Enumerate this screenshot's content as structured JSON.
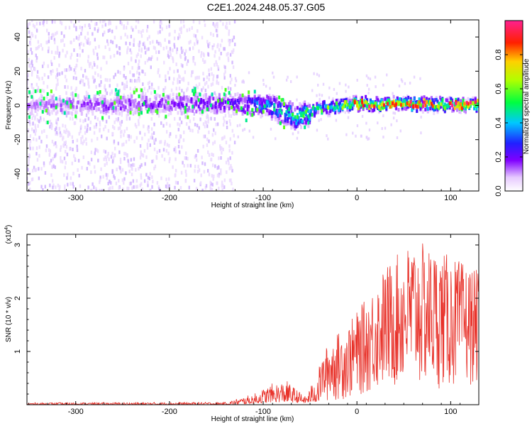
{
  "title": "C2E1.2024.248.05.37.G05",
  "chart_data": [
    {
      "type": "heatmap",
      "title": "C2E1.2024.248.05.37.G05",
      "xlabel": "Height of straight line (km)",
      "ylabel": "Frequency (Hz)",
      "xlim": [
        -352,
        130
      ],
      "ylim": [
        -50,
        50
      ],
      "x_ticks": [
        "-300",
        "-200",
        "-100",
        "0",
        "100"
      ],
      "y_ticks": [
        "-40",
        "-20",
        "0",
        "20",
        "40"
      ],
      "x_tick_values": [
        -300,
        -200,
        -100,
        0,
        100
      ],
      "y_tick_values": [
        -40,
        -20,
        0,
        20,
        40
      ],
      "colorbar": {
        "label": "Normalized spectral amplitude",
        "range": [
          0,
          1
        ],
        "ticks": [
          "0.0",
          "0.2",
          "0.4",
          "0.6",
          "0.8"
        ],
        "tick_values": [
          0.0,
          0.2,
          0.4,
          0.6,
          0.8
        ],
        "colormap": "rainbow (white-violet-blue-cyan-green-yellow-red)"
      },
      "ridge": [
        {
          "x": -352,
          "freq": 0
        },
        {
          "x": -130,
          "freq": 1
        },
        {
          "x": -100,
          "freq": 0
        },
        {
          "x": -80,
          "freq": -3
        },
        {
          "x": -62,
          "freq": -7
        },
        {
          "x": -45,
          "freq": -3
        },
        {
          "x": -20,
          "freq": 0
        },
        {
          "x": 0,
          "freq": 1
        },
        {
          "x": 130,
          "freq": 0
        }
      ],
      "ridge_amplitude": [
        {
          "x": -352,
          "amp": 0.12
        },
        {
          "x": -130,
          "amp": 0.2
        },
        {
          "x": -100,
          "amp": 0.35
        },
        {
          "x": -60,
          "amp": 0.5
        },
        {
          "x": -30,
          "amp": 0.6
        },
        {
          "x": 0,
          "amp": 0.85
        },
        {
          "x": 130,
          "amp": 0.9
        }
      ]
    },
    {
      "type": "line",
      "xlabel": "Height of straight line (km)",
      "ylabel": "SNR (10 * v/v)",
      "y_multiplier_label": "(x10",
      "y_multiplier_exp": "4",
      "xlim": [
        -352,
        130
      ],
      "ylim": [
        0,
        3.2
      ],
      "x_ticks": [
        "-300",
        "-200",
        "-100",
        "0",
        "100"
      ],
      "y_ticks": [
        "1",
        "2",
        "3"
      ],
      "x_tick_values": [
        -300,
        -200,
        -100,
        0,
        100
      ],
      "y_tick_values": [
        1,
        2,
        3
      ],
      "series_color": "#e8322a",
      "envelope": [
        {
          "x": -352,
          "low": 0.0,
          "high": 0.04
        },
        {
          "x": -140,
          "low": 0.0,
          "high": 0.05
        },
        {
          "x": -110,
          "low": 0.02,
          "high": 0.2
        },
        {
          "x": -90,
          "low": 0.05,
          "high": 0.4
        },
        {
          "x": -75,
          "low": 0.05,
          "high": 0.45
        },
        {
          "x": -55,
          "low": 0.03,
          "high": 0.15
        },
        {
          "x": -45,
          "low": 0.05,
          "high": 0.5
        },
        {
          "x": -30,
          "low": 0.05,
          "high": 1.2
        },
        {
          "x": -10,
          "low": 0.1,
          "high": 1.5
        },
        {
          "x": 10,
          "low": 0.2,
          "high": 2.0
        },
        {
          "x": 30,
          "low": 0.3,
          "high": 2.6
        },
        {
          "x": 60,
          "low": 0.3,
          "high": 3.1
        },
        {
          "x": 100,
          "low": 0.3,
          "high": 2.8
        },
        {
          "x": 130,
          "low": 0.4,
          "high": 2.5
        }
      ]
    }
  ]
}
